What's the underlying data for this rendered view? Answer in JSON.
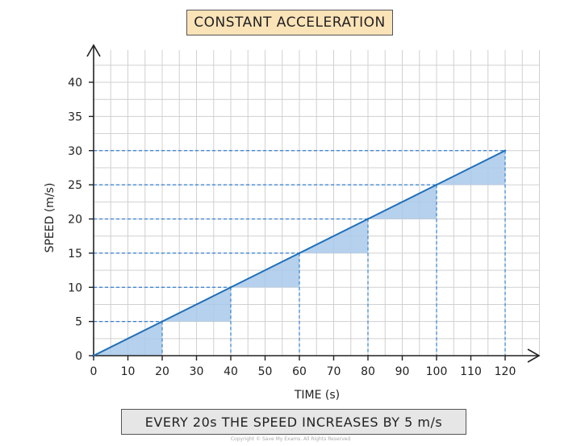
{
  "chart_data": {
    "type": "line",
    "title": "CONSTANT ACCELERATION",
    "xlabel": "TIME (s)",
    "ylabel": "SPEED (m/s)",
    "caption": "EVERY 20s THE SPEED INCREASES BY 5 m/s",
    "xlim": [
      0,
      120
    ],
    "ylim": [
      0,
      40
    ],
    "xticks": [
      0,
      10,
      20,
      30,
      40,
      50,
      60,
      70,
      80,
      90,
      100,
      110,
      120
    ],
    "yticks": [
      0,
      5,
      10,
      15,
      20,
      25,
      30,
      35,
      40
    ],
    "grid": true,
    "series": [
      {
        "x": [
          0,
          20,
          40,
          60,
          80,
          100,
          120
        ],
        "y": [
          0,
          5,
          10,
          15,
          20,
          25,
          30
        ]
      }
    ],
    "colors": {
      "line": "#1f6fb8",
      "fill": "#a9c9ea",
      "grid": "#d0d0d0",
      "dash": "#2f7fd0"
    }
  },
  "copyright": "Copyright © Save My Exams. All Rights Reserved"
}
